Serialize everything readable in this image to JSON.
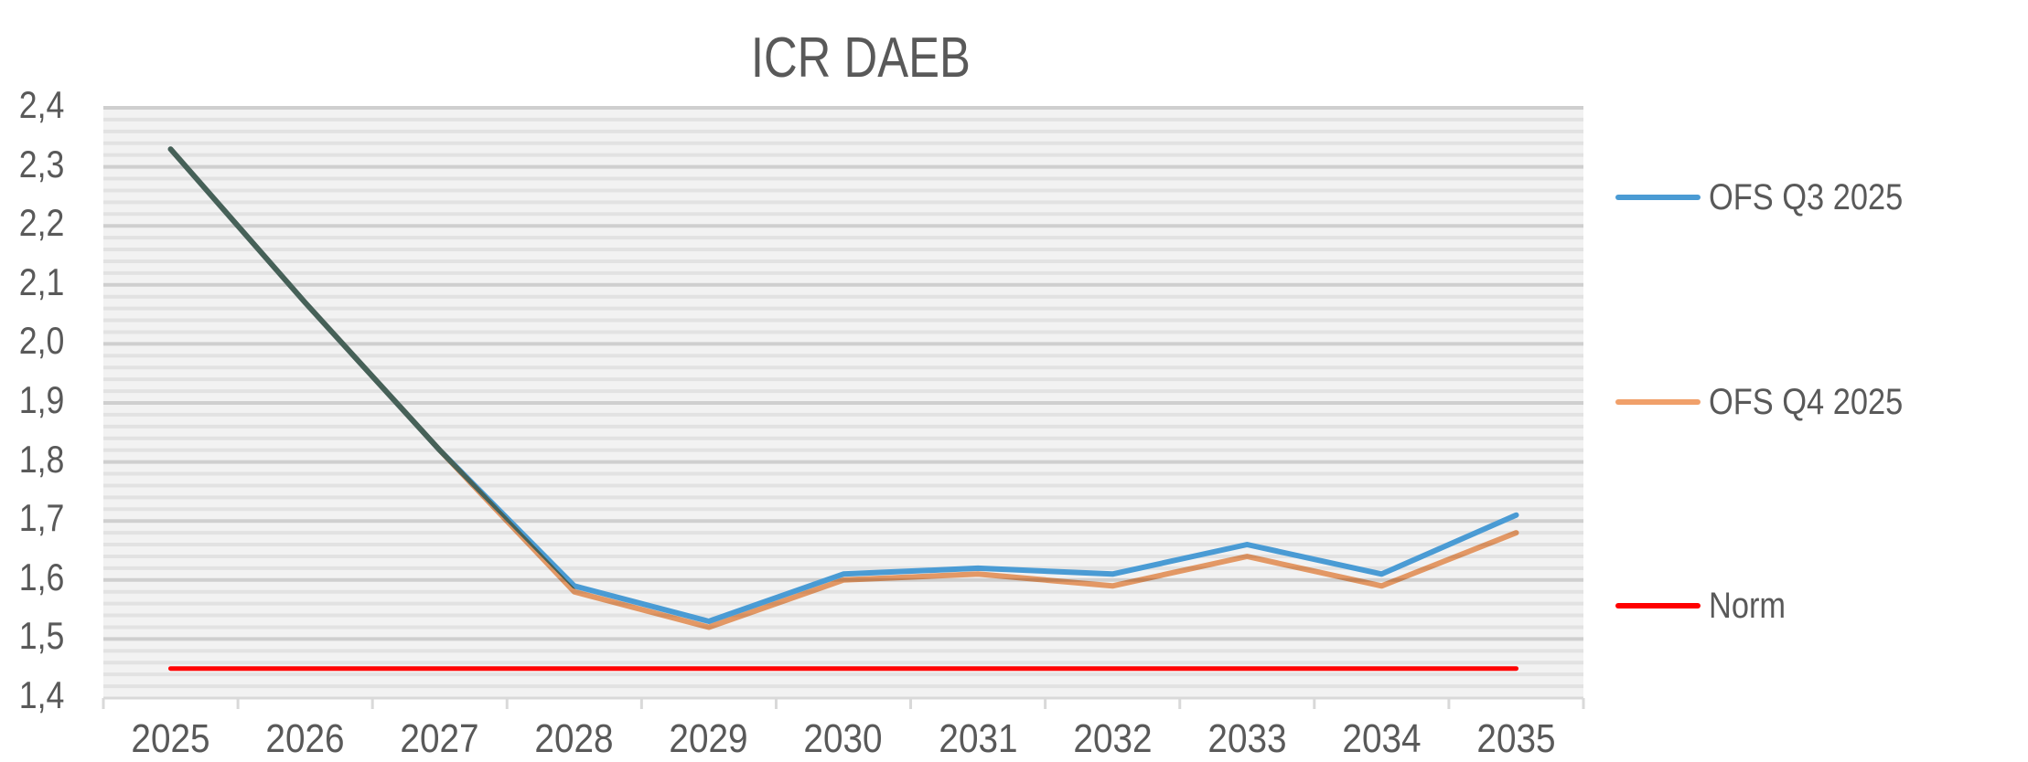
{
  "chart_data": {
    "type": "line",
    "title": "ICR DAEB",
    "xlabel": "",
    "ylabel": "",
    "categories": [
      "2025",
      "2026",
      "2027",
      "2028",
      "2029",
      "2030",
      "2031",
      "2032",
      "2033",
      "2034",
      "2035"
    ],
    "series": [
      {
        "name": "OFS Q3 2025",
        "color": "#4a9bd4",
        "values": [
          2.33,
          2.07,
          1.82,
          1.59,
          1.53,
          1.61,
          1.62,
          1.61,
          1.66,
          1.61,
          1.71
        ]
      },
      {
        "name": "OFS Q4 2025",
        "color": "#f0a06a",
        "values": [
          2.33,
          2.07,
          1.82,
          1.58,
          1.52,
          1.6,
          1.61,
          1.59,
          1.64,
          1.59,
          1.68
        ]
      },
      {
        "name": "Norm",
        "color": "#ff0000",
        "values": [
          1.45,
          1.45,
          1.45,
          1.45,
          1.45,
          1.45,
          1.45,
          1.45,
          1.45,
          1.45,
          1.45
        ]
      }
    ],
    "ylim": [
      1.4,
      2.4
    ],
    "yticks": [
      "2,4",
      "2,3",
      "2,2",
      "2,1",
      "2,0",
      "1,9",
      "1,8",
      "1,7",
      "1,6",
      "1,5",
      "1,4"
    ],
    "grid": true,
    "minor_grid": true,
    "legend_position": "right",
    "plot_background": "#f2f2f2"
  }
}
